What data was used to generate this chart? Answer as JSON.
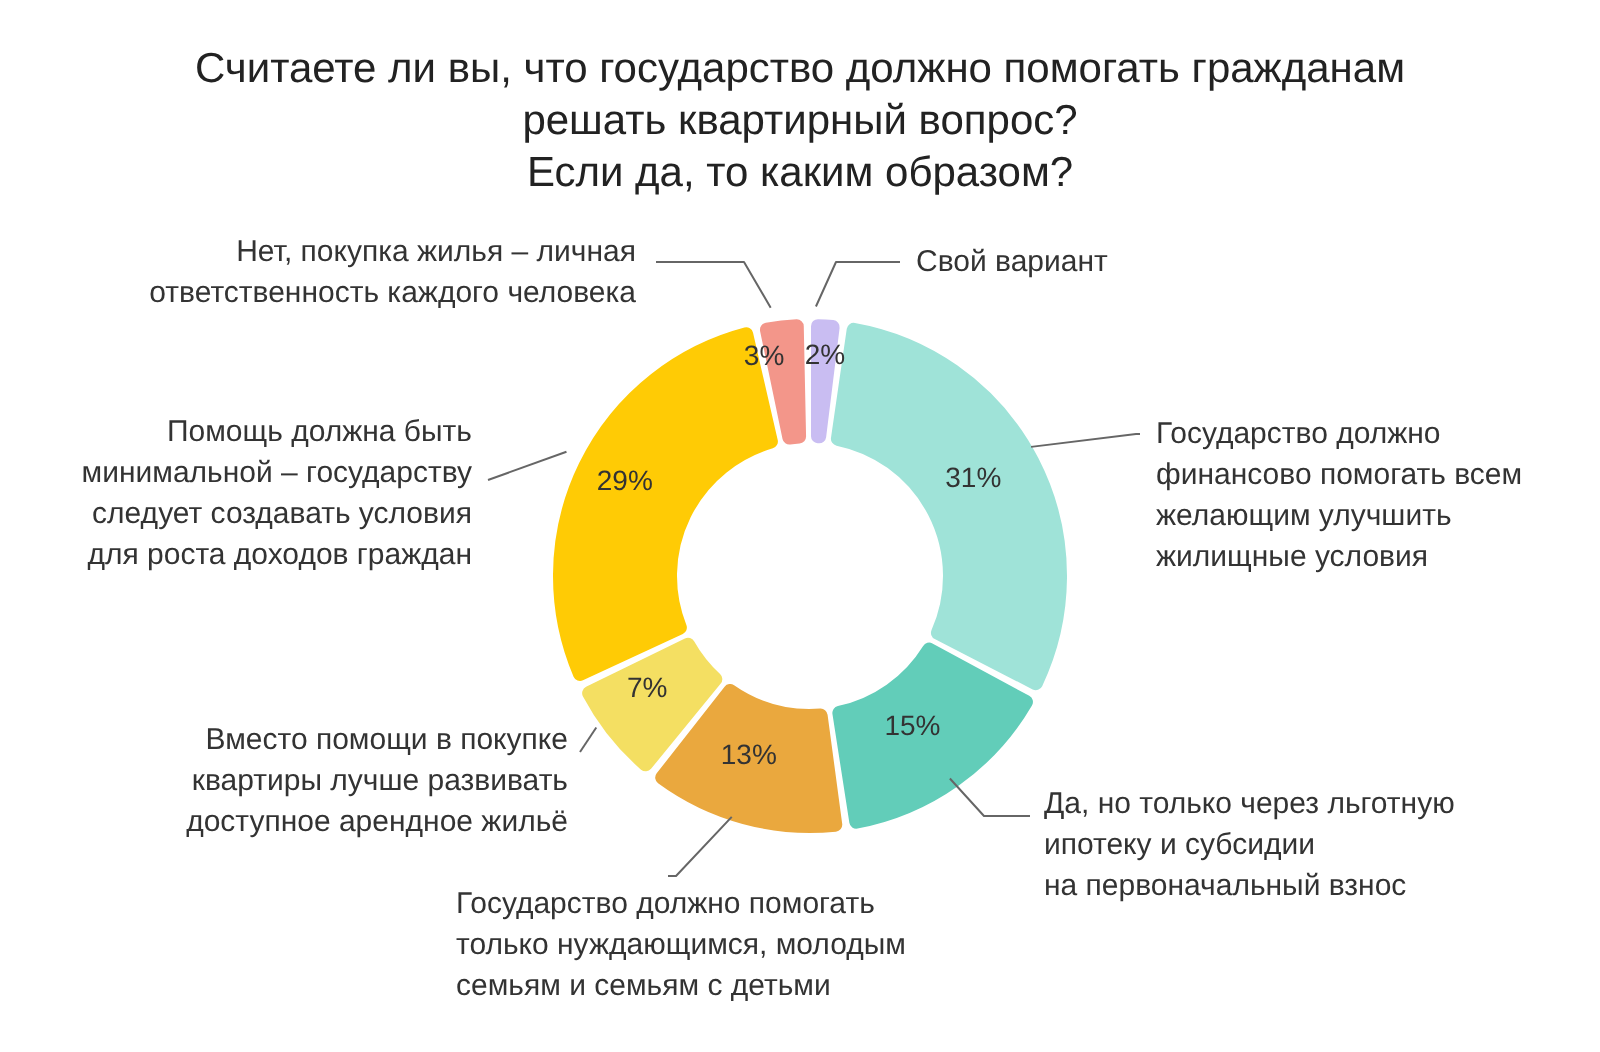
{
  "chart_data": {
    "type": "donut",
    "title": "Считаете ли вы, что государство должно помогать гражданам решать квартирный вопрос? Если да, то каким образом?",
    "categories": [
      "Свой вариант",
      "Государство должно финансово помогать всем желающим улучшить жилищные условия",
      "Да, но только через льготную ипотеку и субсидии на первоначальный взнос",
      "Государство должно помогать только нуждающимся, молодым семьям и семьям с детьми",
      "Вместо помощи в покупке квартиры лучше развивать доступное арендное жильё",
      "Помощь должна быть минимальной – государству следует создавать условия для роста доходов граждан",
      "Нет, покупка жилья – личная ответственность каждого человека"
    ],
    "values": [
      2,
      31,
      15,
      13,
      7,
      29,
      3
    ],
    "value_labels": [
      "2%",
      "31%",
      "15%",
      "13%",
      "7%",
      "29%",
      "3%"
    ],
    "colors": [
      "#c9bdf2",
      "#9fe3d8",
      "#62cdb9",
      "#eaa83e",
      "#f4df62",
      "#ffcb05",
      "#f3968a"
    ]
  }
}
